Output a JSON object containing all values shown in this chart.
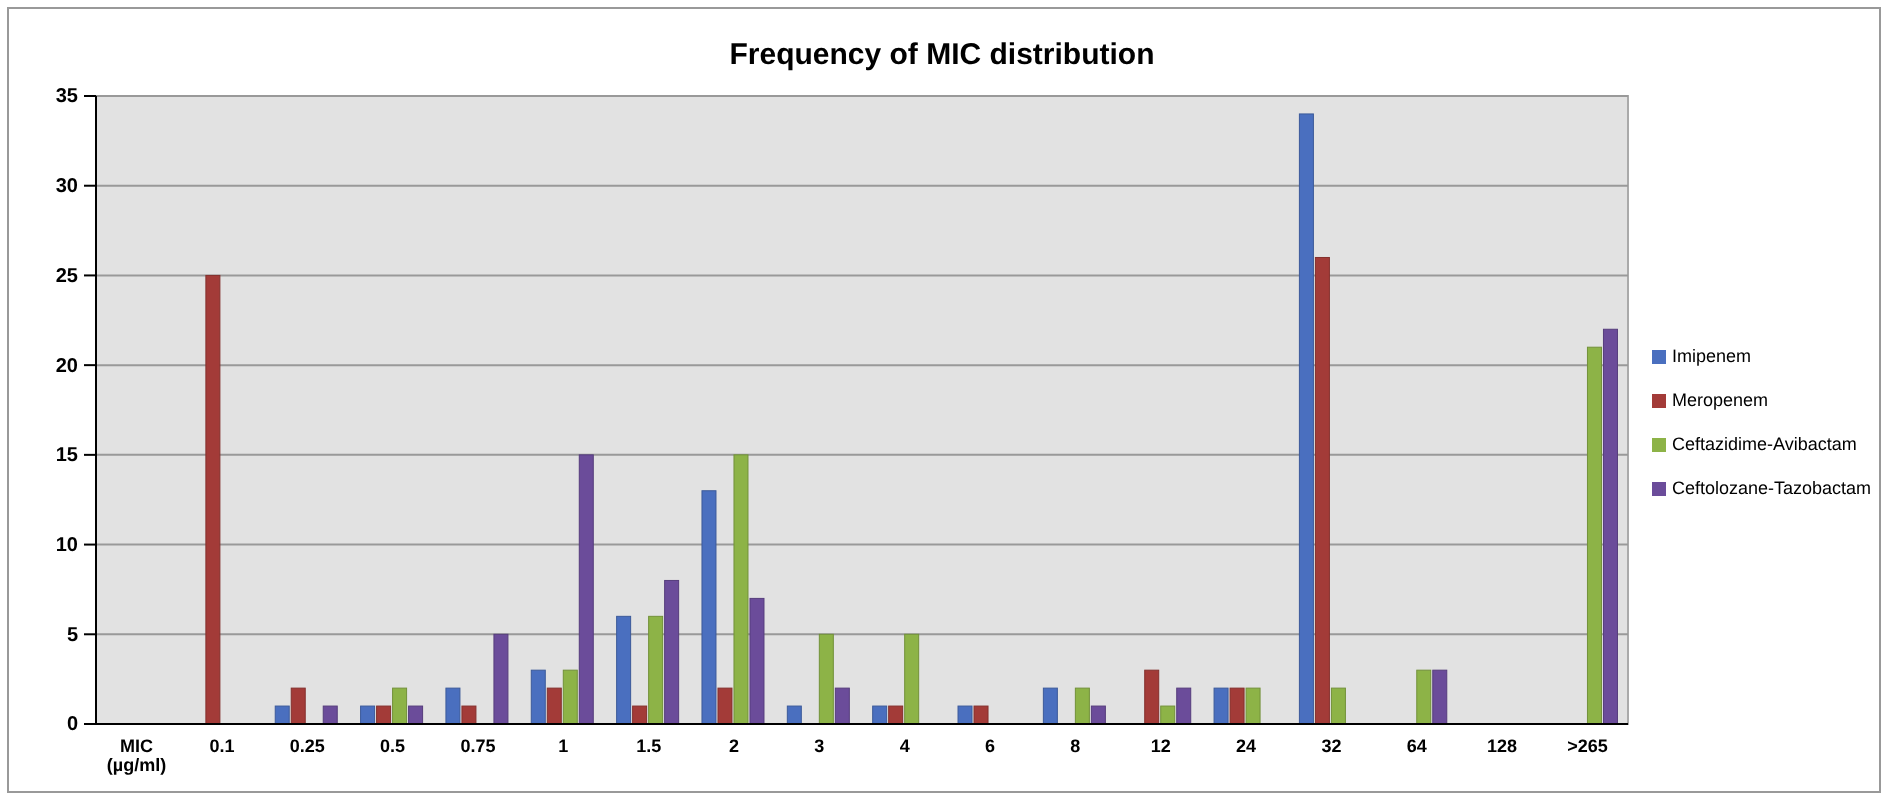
{
  "chart_data": {
    "type": "bar",
    "title": "Frequency of MIC distribution",
    "categories": [
      "MIC (µg/ml)",
      "0.1",
      "0.25",
      "0.5",
      "0.75",
      "1",
      "1.5",
      "2",
      "3",
      "4",
      "6",
      "8",
      "12",
      "24",
      "32",
      "64",
      "128",
      ">265"
    ],
    "series": [
      {
        "name": "Imipenem",
        "color": "#4a6fbf",
        "values": [
          0,
          0,
          1,
          1,
          2,
          3,
          6,
          13,
          1,
          1,
          1,
          2,
          0,
          2,
          34,
          null,
          null,
          null
        ]
      },
      {
        "name": "Meropenem",
        "color": "#a33b38",
        "values": [
          0,
          25,
          2,
          1,
          1,
          2,
          1,
          2,
          0,
          1,
          1,
          0,
          3,
          2,
          26,
          null,
          null,
          null
        ]
      },
      {
        "name": "Ceftazidime-Avibactam",
        "color": "#8db347",
        "values": [
          0,
          0,
          0,
          2,
          0,
          3,
          6,
          15,
          5,
          5,
          0,
          2,
          1,
          2,
          2,
          3,
          0,
          21
        ]
      },
      {
        "name": "Ceftolozane-Tazobactam",
        "color": "#6b4c9a",
        "values": [
          0,
          0,
          1,
          1,
          5,
          15,
          8,
          7,
          2,
          0,
          0,
          1,
          2,
          0,
          0,
          3,
          0,
          22
        ]
      }
    ],
    "ylim": [
      0,
      35
    ],
    "yticks": [
      0,
      5,
      10,
      15,
      20,
      25,
      30,
      35
    ],
    "grid": "y",
    "legend": "right"
  }
}
